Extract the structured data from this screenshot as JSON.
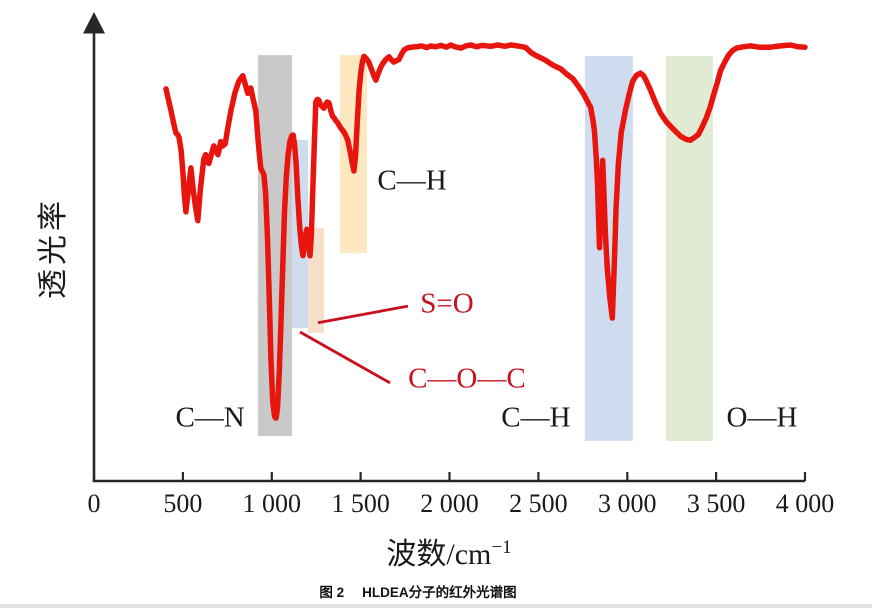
{
  "figure": {
    "caption_prefix": "图 2",
    "caption_title": "HLDEA分子的红外光谱图"
  },
  "axis": {
    "xlabel_main": "波数/cm",
    "xlabel_sup": "−1",
    "ylabel": "透光率"
  },
  "chart_data": {
    "type": "line",
    "title": "图 2 HLDEA分子的红外光谱图",
    "xlabel": "波数/cm⁻¹",
    "ylabel": "透光率",
    "xlim": [
      0,
      4000
    ],
    "ylim": [
      0,
      100
    ],
    "y_axis_note": "transmittance, arbitrary units, no y tick labels, upward arrow axis",
    "grid": false,
    "legend": "none",
    "x_ticks": [
      0,
      500,
      1000,
      1500,
      2000,
      2500,
      3000,
      3500,
      4000
    ],
    "x_tick_labels": [
      "0",
      "500",
      "1 000",
      "1 500",
      "2 000",
      "2 500",
      "3 000",
      "3 500",
      "4 000"
    ],
    "colors": {
      "curve": "#e8150f",
      "annotation_red": "#c8101e",
      "axis": "#2b2727",
      "band_gray": "#c9c9c9",
      "band_blue": "#cfdcef",
      "band_peach": "#f6e0cb",
      "band_yellow": "#fce9c2",
      "band_green": "#e1ead2"
    },
    "highlight_bands": [
      {
        "name": "C-N region",
        "color": "#c9c9c9",
        "wn": [
          922,
          1114
        ],
        "t": [
          5.9,
          92.7
        ]
      },
      {
        "name": "C-O-C region",
        "color": "#cfdcef",
        "wn": [
          1114,
          1204
        ],
        "t": [
          30.5,
          73.4
        ]
      },
      {
        "name": "S=O region",
        "color": "#f6e0cb",
        "wn": [
          1204,
          1294
        ],
        "t": [
          29.4,
          53.3
        ]
      },
      {
        "name": "C-H bend region",
        "color": "#fce9c2",
        "wn": [
          1384,
          1536
        ],
        "t": [
          47.6,
          92.7
        ]
      },
      {
        "name": "C-H stretch region",
        "color": "#cfdcef",
        "wn": [
          2762,
          3032
        ],
        "t": [
          4.8,
          92.5
        ]
      },
      {
        "name": "O-H region",
        "color": "#e1ead2",
        "wn": [
          3218,
          3482
        ],
        "t": [
          4.8,
          92.5
        ]
      }
    ],
    "annotations": [
      {
        "text": "C—N",
        "color": "#1a1a1a",
        "wn": 653,
        "t": 10
      },
      {
        "text": "C—H",
        "color": "#1a1a1a",
        "wn": 1789,
        "t": 64
      },
      {
        "text": "S=O",
        "color": "#c8101e",
        "wn": 1986,
        "t": 36
      },
      {
        "text": "C—O—C",
        "color": "#c8101e",
        "wn": 2098,
        "t": 19
      },
      {
        "text": "C—H",
        "color": "#1a1a1a",
        "wn": 2486,
        "t": 10
      },
      {
        "text": "O—H",
        "color": "#1a1a1a",
        "wn": 3758,
        "t": 10
      }
    ],
    "leader_lines": [
      {
        "label": "S=O",
        "from_wn": 1260,
        "from_t": 31.7,
        "to_wn": 1766,
        "to_t": 35.5
      },
      {
        "label": "C—O—C",
        "from_wn": 1159,
        "from_t": 29.6,
        "to_wn": 1665,
        "to_t": 18.0
      }
    ],
    "series": [
      {
        "name": "HLDEA 红外光谱",
        "points": [
          [
            405,
            85
          ],
          [
            420,
            82.3
          ],
          [
            433,
            80
          ],
          [
            448,
            77.2
          ],
          [
            460,
            75
          ],
          [
            470,
            74.6
          ],
          [
            478,
            74
          ],
          [
            490,
            71
          ],
          [
            500,
            66
          ],
          [
            508,
            61
          ],
          [
            517,
            57
          ],
          [
            528,
            61
          ],
          [
            545,
            67
          ],
          [
            558,
            62
          ],
          [
            570,
            58.5
          ],
          [
            584,
            55
          ],
          [
            598,
            62
          ],
          [
            618,
            69
          ],
          [
            628,
            70
          ],
          [
            638,
            69.5
          ],
          [
            646,
            68
          ],
          [
            660,
            70
          ],
          [
            674,
            72
          ],
          [
            686,
            71
          ],
          [
            697,
            70
          ],
          [
            706,
            71.5
          ],
          [
            713,
            73
          ],
          [
            725,
            72
          ],
          [
            738,
            72.5
          ],
          [
            752,
            76
          ],
          [
            770,
            80
          ],
          [
            792,
            84
          ],
          [
            815,
            86.8
          ],
          [
            837,
            88
          ],
          [
            851,
            86
          ],
          [
            865,
            84
          ],
          [
            874,
            84.8
          ],
          [
            882,
            85.2
          ],
          [
            896,
            82.5
          ],
          [
            910,
            80
          ],
          [
            924,
            73
          ],
          [
            938,
            67
          ],
          [
            947,
            66.2
          ],
          [
            956,
            65.5
          ],
          [
            966,
            61
          ],
          [
            976,
            51
          ],
          [
            986,
            37
          ],
          [
            996,
            23
          ],
          [
            1006,
            13.5
          ],
          [
            1016,
            10.3
          ],
          [
            1024,
            10
          ],
          [
            1032,
            12
          ],
          [
            1042,
            20
          ],
          [
            1052,
            32
          ],
          [
            1062,
            45
          ],
          [
            1072,
            57
          ],
          [
            1082,
            65
          ],
          [
            1092,
            70
          ],
          [
            1102,
            73
          ],
          [
            1112,
            74.3
          ],
          [
            1120,
            74.5
          ],
          [
            1128,
            72.5
          ],
          [
            1137,
            68
          ],
          [
            1147,
            60
          ],
          [
            1157,
            53.5
          ],
          [
            1166,
            49.5
          ],
          [
            1175,
            47
          ],
          [
            1183,
            49
          ],
          [
            1191,
            52
          ],
          [
            1198,
            53
          ],
          [
            1206,
            50
          ],
          [
            1215,
            47
          ],
          [
            1223,
            52
          ],
          [
            1231,
            62
          ],
          [
            1240,
            73
          ],
          [
            1248,
            82
          ],
          [
            1257,
            82.6
          ],
          [
            1265,
            82.4
          ],
          [
            1274,
            81.4
          ],
          [
            1284,
            81
          ],
          [
            1293,
            80.6
          ],
          [
            1302,
            81.4
          ],
          [
            1312,
            82
          ],
          [
            1322,
            81.8
          ],
          [
            1332,
            80
          ],
          [
            1342,
            78.8
          ],
          [
            1352,
            78.3
          ],
          [
            1362,
            77.7
          ],
          [
            1372,
            77.2
          ],
          [
            1386,
            76.2
          ],
          [
            1400,
            75.5
          ],
          [
            1414,
            74.6
          ],
          [
            1428,
            73.3
          ],
          [
            1442,
            70.5
          ],
          [
            1452,
            68.3
          ],
          [
            1462,
            66.3
          ],
          [
            1472,
            70
          ],
          [
            1482,
            78
          ],
          [
            1492,
            85
          ],
          [
            1501,
            88.7
          ],
          [
            1510,
            91.2
          ],
          [
            1519,
            92.4
          ],
          [
            1532,
            91.9
          ],
          [
            1546,
            91.1
          ],
          [
            1562,
            89.4
          ],
          [
            1574,
            88
          ],
          [
            1586,
            87
          ],
          [
            1600,
            88.6
          ],
          [
            1614,
            90
          ],
          [
            1628,
            91
          ],
          [
            1642,
            91.7
          ],
          [
            1653,
            92.1
          ],
          [
            1660,
            92.3
          ],
          [
            1672,
            91.7
          ],
          [
            1686,
            91.1
          ],
          [
            1700,
            91.4
          ],
          [
            1716,
            91.7
          ],
          [
            1730,
            92.9
          ],
          [
            1745,
            93.9
          ],
          [
            1762,
            94.3
          ],
          [
            1782,
            94.5
          ],
          [
            1812,
            94.6
          ],
          [
            1842,
            94.8
          ],
          [
            1872,
            94.4
          ],
          [
            1895,
            94.8
          ],
          [
            1922,
            94.6
          ],
          [
            1952,
            94.9
          ],
          [
            1982,
            94.5
          ],
          [
            2008,
            95
          ],
          [
            2032,
            94.6
          ],
          [
            2064,
            94.3
          ],
          [
            2092,
            94.8
          ],
          [
            2120,
            95
          ],
          [
            2152,
            94.6
          ],
          [
            2182,
            94.9
          ],
          [
            2232,
            94.7
          ],
          [
            2272,
            95
          ],
          [
            2312,
            94.7
          ],
          [
            2345,
            95
          ],
          [
            2382,
            94.8
          ],
          [
            2412,
            94.6
          ],
          [
            2430,
            94.4
          ],
          [
            2458,
            93.3
          ],
          [
            2482,
            92.7
          ],
          [
            2512,
            92.1
          ],
          [
            2542,
            91.5
          ],
          [
            2582,
            90.4
          ],
          [
            2625,
            89.6
          ],
          [
            2658,
            88.4
          ],
          [
            2694,
            87.3
          ],
          [
            2722,
            85.8
          ],
          [
            2755,
            83.8
          ],
          [
            2778,
            82
          ],
          [
            2794,
            80.8
          ],
          [
            2807,
            78
          ],
          [
            2816,
            75.3
          ],
          [
            2826,
            69
          ],
          [
            2833,
            63
          ],
          [
            2838,
            56
          ],
          [
            2844,
            48.8
          ],
          [
            2849,
            55
          ],
          [
            2855,
            62
          ],
          [
            2862,
            68.7
          ],
          [
            2868,
            62
          ],
          [
            2877,
            52
          ],
          [
            2888,
            44
          ],
          [
            2902,
            37.5
          ],
          [
            2916,
            32.8
          ],
          [
            2927,
            45
          ],
          [
            2937,
            58
          ],
          [
            2950,
            68
          ],
          [
            2966,
            75
          ],
          [
            2990,
            80.2
          ],
          [
            3012,
            84
          ],
          [
            3030,
            86.7
          ],
          [
            3052,
            88.1
          ],
          [
            3074,
            88.6
          ],
          [
            3092,
            88
          ],
          [
            3112,
            86.4
          ],
          [
            3132,
            84.6
          ],
          [
            3158,
            82
          ],
          [
            3188,
            79.4
          ],
          [
            3222,
            77.4
          ],
          [
            3255,
            76
          ],
          [
            3300,
            74.2
          ],
          [
            3332,
            73.5
          ],
          [
            3356,
            73.3
          ],
          [
            3378,
            73.9
          ],
          [
            3400,
            74.6
          ],
          [
            3422,
            76.4
          ],
          [
            3445,
            78.4
          ],
          [
            3468,
            81
          ],
          [
            3486,
            83.6
          ],
          [
            3508,
            86.6
          ],
          [
            3525,
            89.2
          ],
          [
            3548,
            91.1
          ],
          [
            3570,
            92.7
          ],
          [
            3592,
            93.7
          ],
          [
            3615,
            94.3
          ],
          [
            3652,
            94.6
          ],
          [
            3694,
            94.8
          ],
          [
            3742,
            94.5
          ],
          [
            3805,
            94.5
          ],
          [
            3862,
            94.8
          ],
          [
            3918,
            95
          ],
          [
            3962,
            94.6
          ],
          [
            4000,
            94.5
          ]
        ]
      }
    ]
  }
}
